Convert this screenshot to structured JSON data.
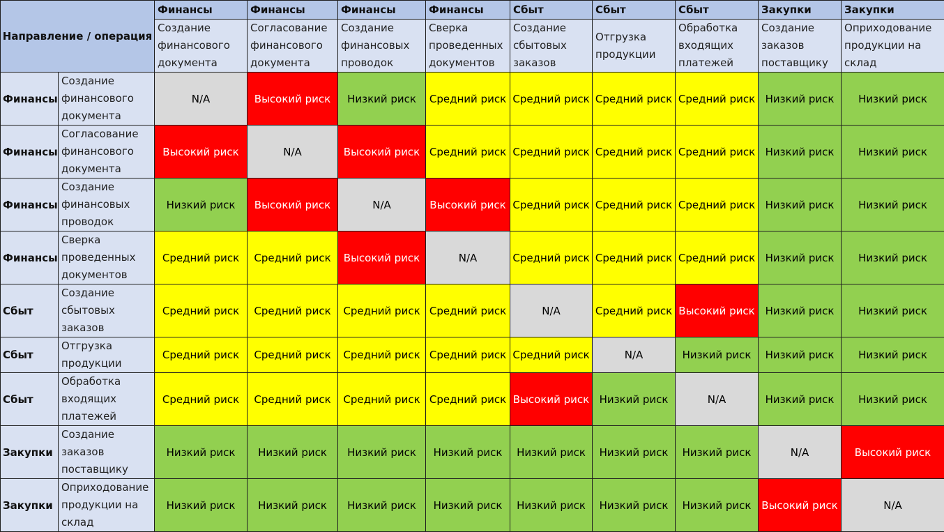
{
  "header_label": "Направление / операция",
  "columns": [
    {
      "direction": "Финансы",
      "operation": "Создание финансового документа"
    },
    {
      "direction": "Финансы",
      "operation": "Согласование финансового документа"
    },
    {
      "direction": "Финансы",
      "operation": "Создание финансовых проводок"
    },
    {
      "direction": "Финансы",
      "operation": "Сверка проведенных документов"
    },
    {
      "direction": "Сбыт",
      "operation": "Создание сбытовых заказов"
    },
    {
      "direction": "Сбыт",
      "operation": "Отгрузка продукции"
    },
    {
      "direction": "Сбыт",
      "operation": "Обработка входящих платежей"
    },
    {
      "direction": "Закупки",
      "operation": "Создание заказов поставщику"
    },
    {
      "direction": "Закупки",
      "operation": "Оприходование продукции на склад"
    }
  ],
  "rows": [
    {
      "direction": "Финансы",
      "operation": "Создание финансового документа",
      "cells": [
        "N/A",
        "Высокий риск",
        "Низкий риск",
        "Средний риск",
        "Средний риск",
        "Средний риск",
        "Средний риск",
        "Низкий риск",
        "Низкий риск"
      ]
    },
    {
      "direction": "Финансы",
      "operation": "Согласование финансового документа",
      "cells": [
        "Высокий риск",
        "N/A",
        "Высокий риск",
        "Средний риск",
        "Средний риск",
        "Средний риск",
        "Средний риск",
        "Низкий риск",
        "Низкий риск"
      ]
    },
    {
      "direction": "Финансы",
      "operation": "Создание финансовых проводок",
      "cells": [
        "Низкий риск",
        "Высокий риск",
        "N/A",
        "Высокий риск",
        "Средний риск",
        "Средний риск",
        "Средний риск",
        "Низкий риск",
        "Низкий риск"
      ]
    },
    {
      "direction": "Финансы",
      "operation": "Сверка проведенных документов",
      "cells": [
        "Средний риск",
        "Средний риск",
        "Высокий риск",
        "N/A",
        "Средний риск",
        "Средний риск",
        "Средний риск",
        "Низкий риск",
        "Низкий риск"
      ]
    },
    {
      "direction": "Сбыт",
      "operation": "Создание сбытовых заказов",
      "cells": [
        "Средний риск",
        "Средний риск",
        "Средний риск",
        "Средний риск",
        "N/A",
        "Средний риск",
        "Высокий риск",
        "Низкий риск",
        "Низкий риск"
      ]
    },
    {
      "direction": "Сбыт",
      "operation": "Отгрузка продукции",
      "cells": [
        "Средний риск",
        "Средний риск",
        "Средний риск",
        "Средний риск",
        "Средний риск",
        "N/A",
        "Низкий риск",
        "Низкий риск",
        "Низкий риск"
      ]
    },
    {
      "direction": "Сбыт",
      "operation": "Обработка входящих платежей",
      "cells": [
        "Средний риск",
        "Средний риск",
        "Средний риск",
        "Средний риск",
        "Высокий риск",
        "Низкий риск",
        "N/A",
        "Низкий риск",
        "Низкий риск"
      ]
    },
    {
      "direction": "Закупки",
      "operation": "Создание заказов поставщику",
      "cells": [
        "Низкий риск",
        "Низкий риск",
        "Низкий риск",
        "Низкий риск",
        "Низкий риск",
        "Низкий риск",
        "Низкий риск",
        "N/A",
        "Высокий риск"
      ]
    },
    {
      "direction": "Закупки",
      "operation": "Оприходование продукции на склад",
      "cells": [
        "Низкий риск",
        "Низкий риск",
        "Низкий риск",
        "Низкий риск",
        "Низкий риск",
        "Низкий риск",
        "Низкий риск",
        "Высокий риск",
        "N/A"
      ]
    }
  ],
  "risk_colors": {
    "N/A": "#d9d9d9",
    "Высокий риск": "#ff0000",
    "Средний риск": "#ffff00",
    "Низкий риск": "#92d050"
  }
}
